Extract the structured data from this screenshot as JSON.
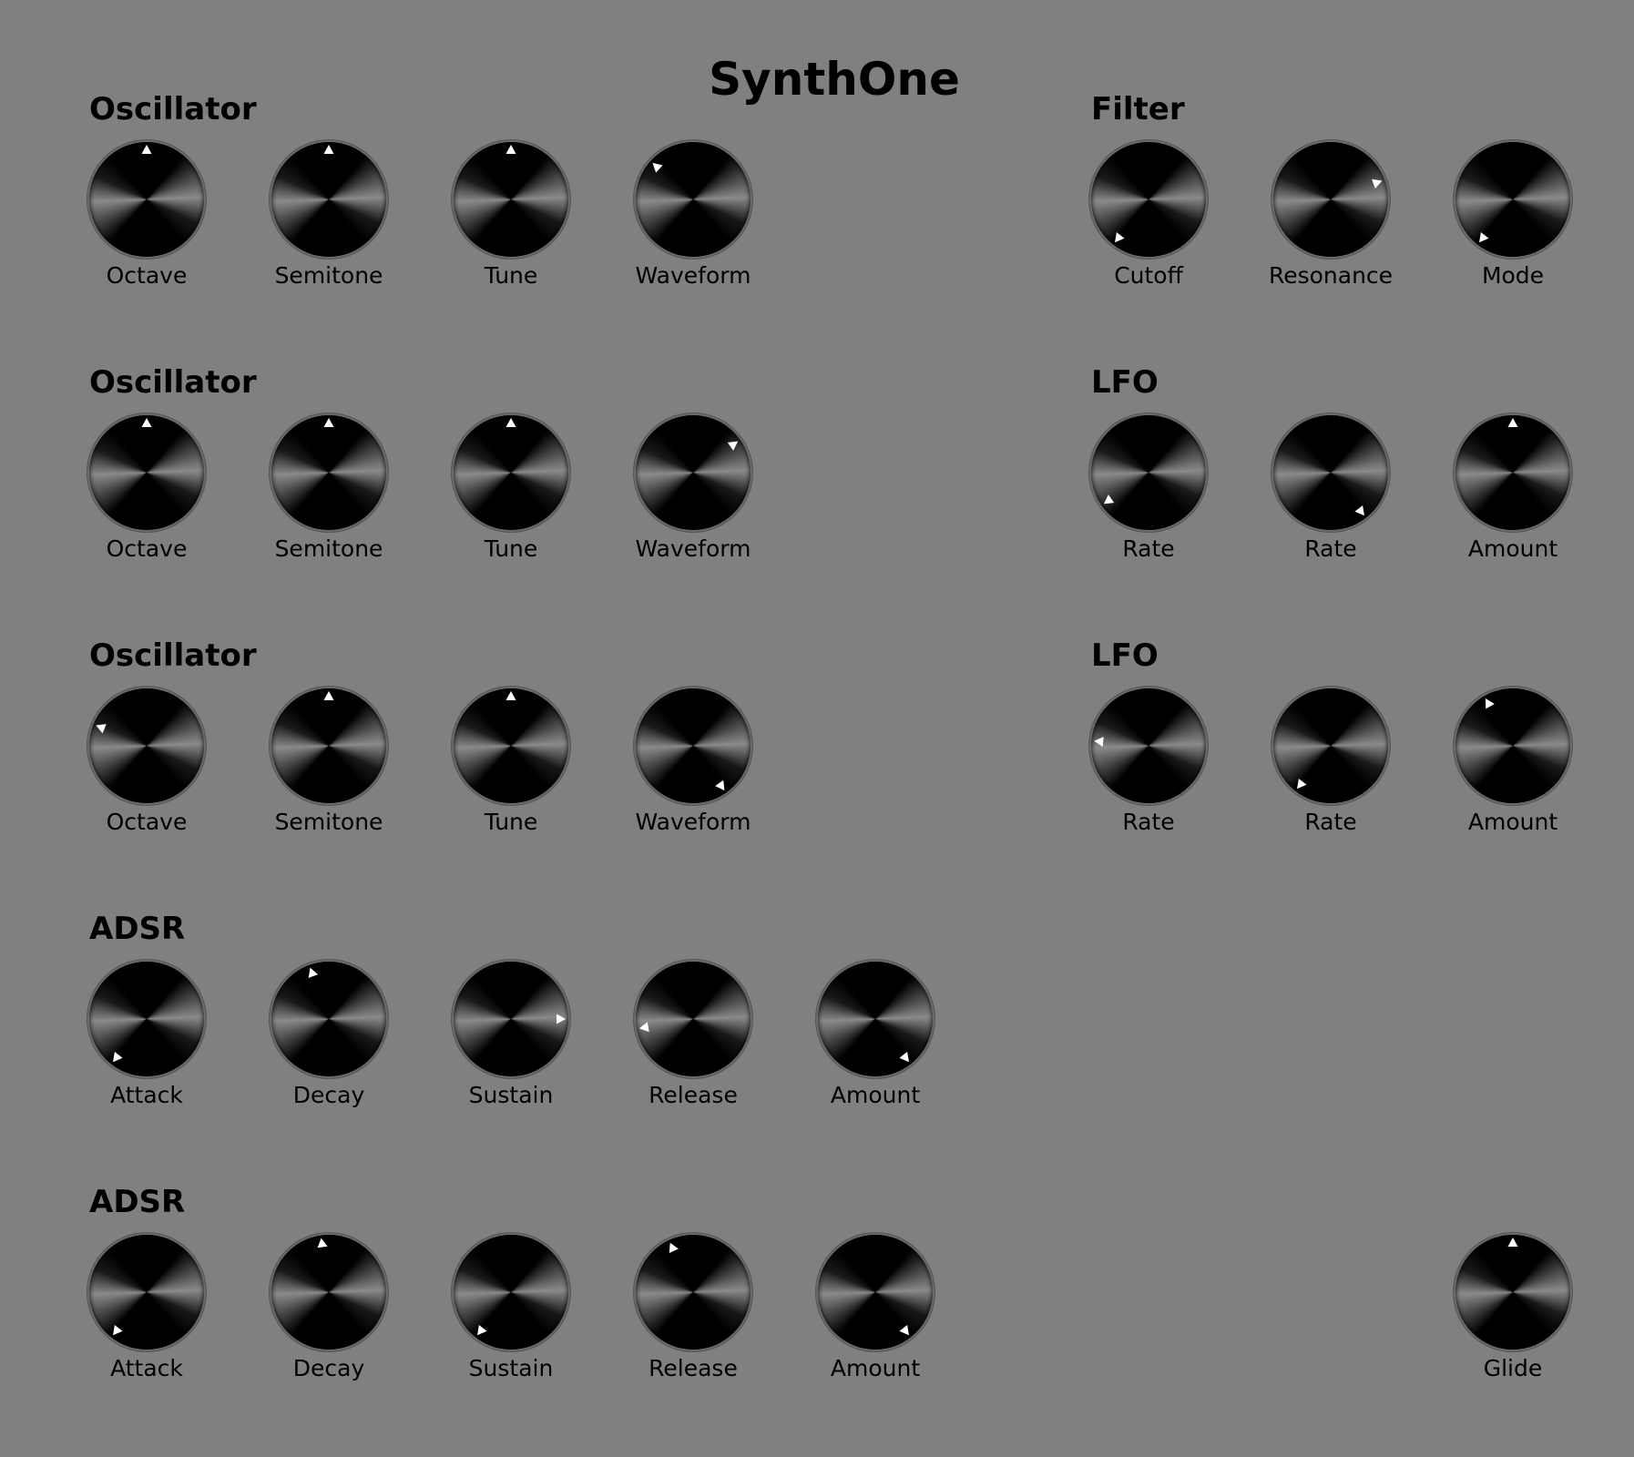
{
  "app": {
    "title": "SynthOne"
  },
  "colors": {
    "background": "#808080",
    "knob": "#000000",
    "pointer": "#ffffff"
  },
  "sections": [
    {
      "id": "osc1",
      "label": "Oscillator",
      "knobs": [
        {
          "label": "Octave",
          "angle": 0
        },
        {
          "label": "Semitone",
          "angle": 0
        },
        {
          "label": "Tune",
          "angle": 0
        },
        {
          "label": "Waveform",
          "angle": -48
        }
      ]
    },
    {
      "id": "osc2",
      "label": "Oscillator",
      "knobs": [
        {
          "label": "Octave",
          "angle": 0
        },
        {
          "label": "Semitone",
          "angle": 0
        },
        {
          "label": "Tune",
          "angle": 0
        },
        {
          "label": "Waveform",
          "angle": 55
        }
      ]
    },
    {
      "id": "osc3",
      "label": "Oscillator",
      "knobs": [
        {
          "label": "Octave",
          "angle": -68
        },
        {
          "label": "Semitone",
          "angle": 0
        },
        {
          "label": "Tune",
          "angle": 0
        },
        {
          "label": "Waveform",
          "angle": 145
        }
      ]
    },
    {
      "id": "adsr1",
      "label": "ADSR",
      "knobs": [
        {
          "label": "Attack",
          "angle": -142
        },
        {
          "label": "Decay",
          "angle": -20
        },
        {
          "label": "Sustain",
          "angle": 90
        },
        {
          "label": "Release",
          "angle": -100
        },
        {
          "label": "Amount",
          "angle": 142
        }
      ]
    },
    {
      "id": "adsr2",
      "label": "ADSR",
      "knobs": [
        {
          "label": "Attack",
          "angle": -142
        },
        {
          "label": "Decay",
          "angle": -8
        },
        {
          "label": "Sustain",
          "angle": -142
        },
        {
          "label": "Release",
          "angle": -25
        },
        {
          "label": "Amount",
          "angle": 142
        }
      ]
    },
    {
      "id": "filter",
      "label": "Filter",
      "knobs": [
        {
          "label": "Cutoff",
          "angle": -142
        },
        {
          "label": "Resonance",
          "angle": 70
        },
        {
          "label": "Mode",
          "angle": -142
        }
      ]
    },
    {
      "id": "lfo1",
      "label": "LFO",
      "knobs": [
        {
          "label": "Rate",
          "angle": -125
        },
        {
          "label": "Rate",
          "angle": 142
        },
        {
          "label": "Amount",
          "angle": 0
        }
      ]
    },
    {
      "id": "lfo2",
      "label": "LFO",
      "knobs": [
        {
          "label": "Rate",
          "angle": -85
        },
        {
          "label": "Rate",
          "angle": -142
        },
        {
          "label": "Amount",
          "angle": -30
        }
      ]
    },
    {
      "id": "global",
      "label": "",
      "knobs": [
        {
          "label": "Glide",
          "angle": 0
        }
      ]
    }
  ]
}
